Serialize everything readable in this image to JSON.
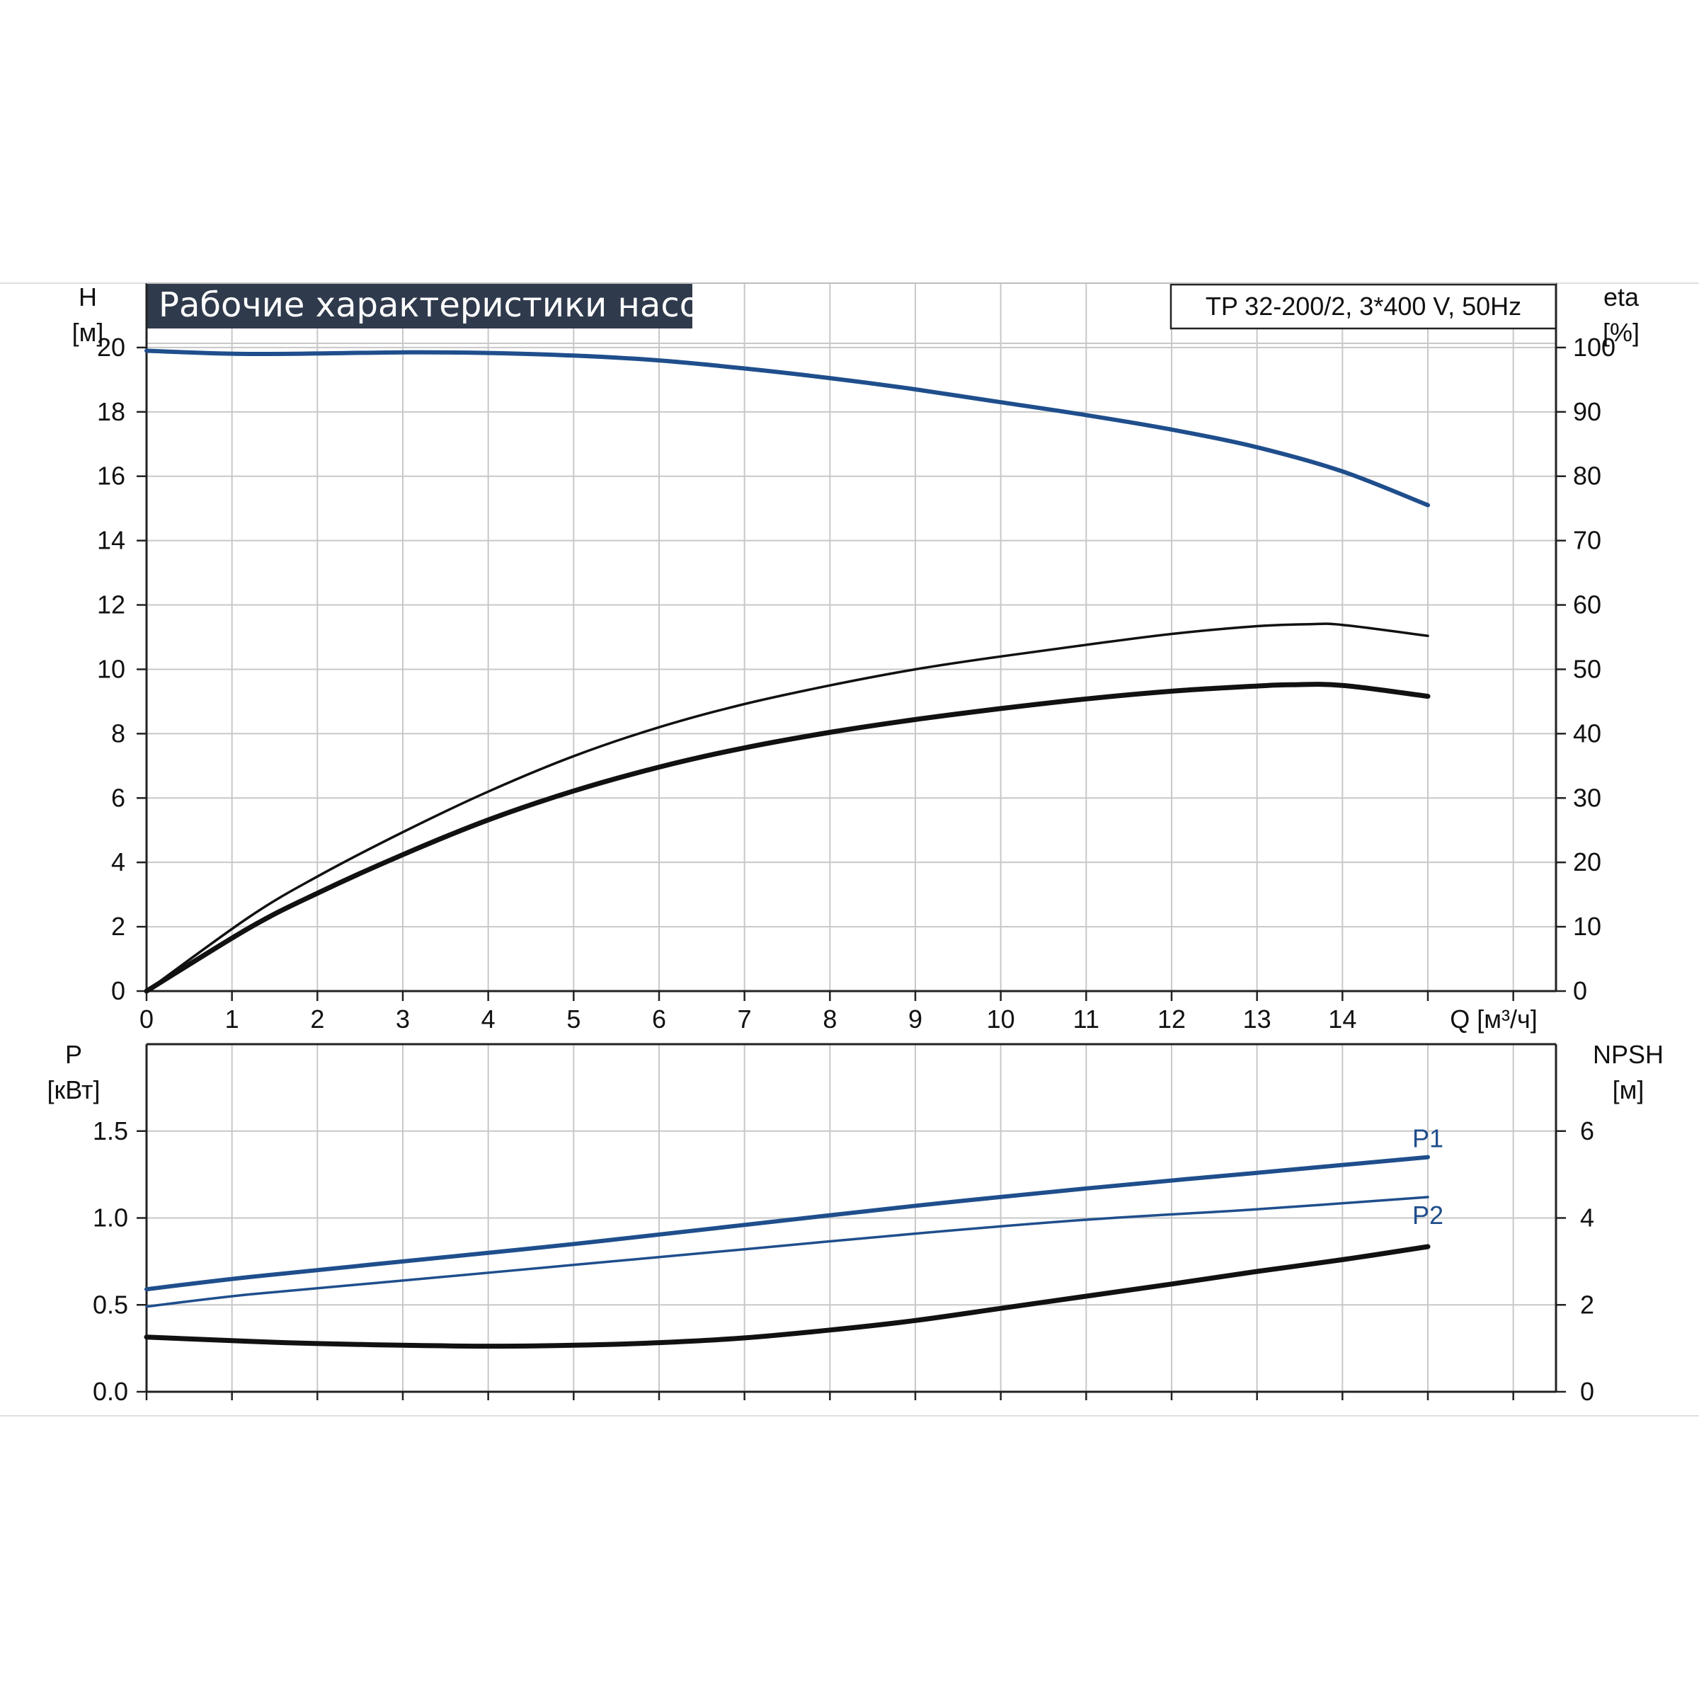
{
  "header": {
    "title": "Рабочие характеристики насоса",
    "model": "TP 32-200/2, 3*400 V, 50Hz"
  },
  "colors": {
    "blue": "#1f4e8c",
    "black": "#111111",
    "title_bg": "#2f3b4c"
  },
  "chart_data": [
    {
      "type": "line",
      "panel": "top",
      "title": "Рабочие характеристики насоса",
      "left_axis": {
        "symbol": "H",
        "unit": "[м]",
        "ylim": [
          0,
          22
        ],
        "ticks": [
          0,
          2,
          4,
          6,
          8,
          10,
          12,
          14,
          16,
          18,
          20
        ]
      },
      "right_axis": {
        "symbol": "eta",
        "unit": "[%]",
        "ylim": [
          0,
          110
        ],
        "ticks": [
          0,
          10,
          20,
          30,
          40,
          50,
          60,
          70,
          80,
          90,
          100
        ]
      },
      "x_axis": {
        "symbol": "Q",
        "unit": "[м³/ч]",
        "xlim": [
          0,
          16.5
        ],
        "ticks": [
          0,
          1,
          2,
          3,
          4,
          5,
          6,
          7,
          8,
          9,
          10,
          11,
          12,
          13,
          14
        ],
        "grid_ticks": [
          0,
          1,
          2,
          3,
          4,
          5,
          6,
          7,
          8,
          9,
          10,
          11,
          12,
          13,
          14,
          15,
          16
        ]
      },
      "grid": true,
      "series": [
        {
          "axis": "left",
          "color": "blue",
          "width": 6,
          "x": [
            0,
            1.2,
            3,
            4,
            5,
            6,
            7,
            8,
            9,
            10,
            11,
            12,
            13,
            14,
            15
          ],
          "y": [
            19.9,
            19.8,
            19.85,
            19.83,
            19.75,
            19.6,
            19.35,
            19.05,
            18.7,
            18.3,
            17.9,
            17.45,
            16.9,
            16.15,
            15.1
          ]
        },
        {
          "axis": "right",
          "color": "black",
          "width": 3.5,
          "x": [
            0,
            1.2,
            2,
            3,
            4,
            5,
            6,
            7,
            8,
            9,
            10,
            11,
            12,
            13,
            13.6,
            14,
            15
          ],
          "y": [
            0,
            11.5,
            17.8,
            24.7,
            31,
            36.5,
            41,
            44.6,
            47.5,
            50,
            52,
            53.8,
            55.5,
            56.7,
            57,
            56.9,
            55.2
          ]
        },
        {
          "axis": "right",
          "color": "black",
          "width": 7,
          "x": [
            0,
            1.2,
            2,
            3,
            4,
            5,
            6,
            7,
            8,
            9,
            10,
            11,
            12,
            13,
            13.4,
            14,
            15
          ],
          "y": [
            0,
            9.8,
            15.2,
            21.2,
            26.6,
            31.1,
            34.8,
            37.8,
            40.2,
            42.2,
            43.9,
            45.4,
            46.6,
            47.4,
            47.6,
            47.5,
            45.8
          ]
        }
      ]
    },
    {
      "type": "line",
      "panel": "bottom",
      "left_axis": {
        "symbol": "P",
        "unit": "[кВт]",
        "ylim": [
          0,
          2.0
        ],
        "ticks": [
          "0.0",
          "0.5",
          "1.0",
          "1.5"
        ]
      },
      "right_axis": {
        "symbol": "NPSH",
        "unit": "[м]",
        "ylim": [
          0,
          8
        ],
        "ticks": [
          0,
          2,
          4,
          6
        ]
      },
      "x_axis": {
        "xlim": [
          0,
          16.5
        ]
      },
      "grid": true,
      "series": [
        {
          "name": "P1",
          "axis": "left",
          "color": "blue",
          "width": 6,
          "x": [
            0,
            1.2,
            3,
            5,
            7,
            9,
            11,
            13,
            15
          ],
          "y": [
            0.59,
            0.66,
            0.75,
            0.85,
            0.96,
            1.07,
            1.17,
            1.26,
            1.35
          ]
        },
        {
          "name": "P2",
          "axis": "left",
          "color": "blue",
          "width": 3.5,
          "x": [
            0,
            1.2,
            3,
            5,
            7,
            9,
            11,
            13,
            15
          ],
          "y": [
            0.49,
            0.56,
            0.64,
            0.73,
            0.82,
            0.91,
            0.99,
            1.05,
            1.12
          ]
        },
        {
          "axis": "right",
          "color": "black",
          "width": 7,
          "x": [
            0,
            1.2,
            2,
            3,
            4,
            5,
            6,
            7,
            8,
            9,
            10,
            11,
            12,
            13,
            14,
            15
          ],
          "y": [
            1.26,
            1.16,
            1.11,
            1.07,
            1.05,
            1.07,
            1.13,
            1.24,
            1.42,
            1.64,
            1.92,
            2.2,
            2.48,
            2.77,
            3.04,
            3.34
          ]
        }
      ]
    }
  ]
}
